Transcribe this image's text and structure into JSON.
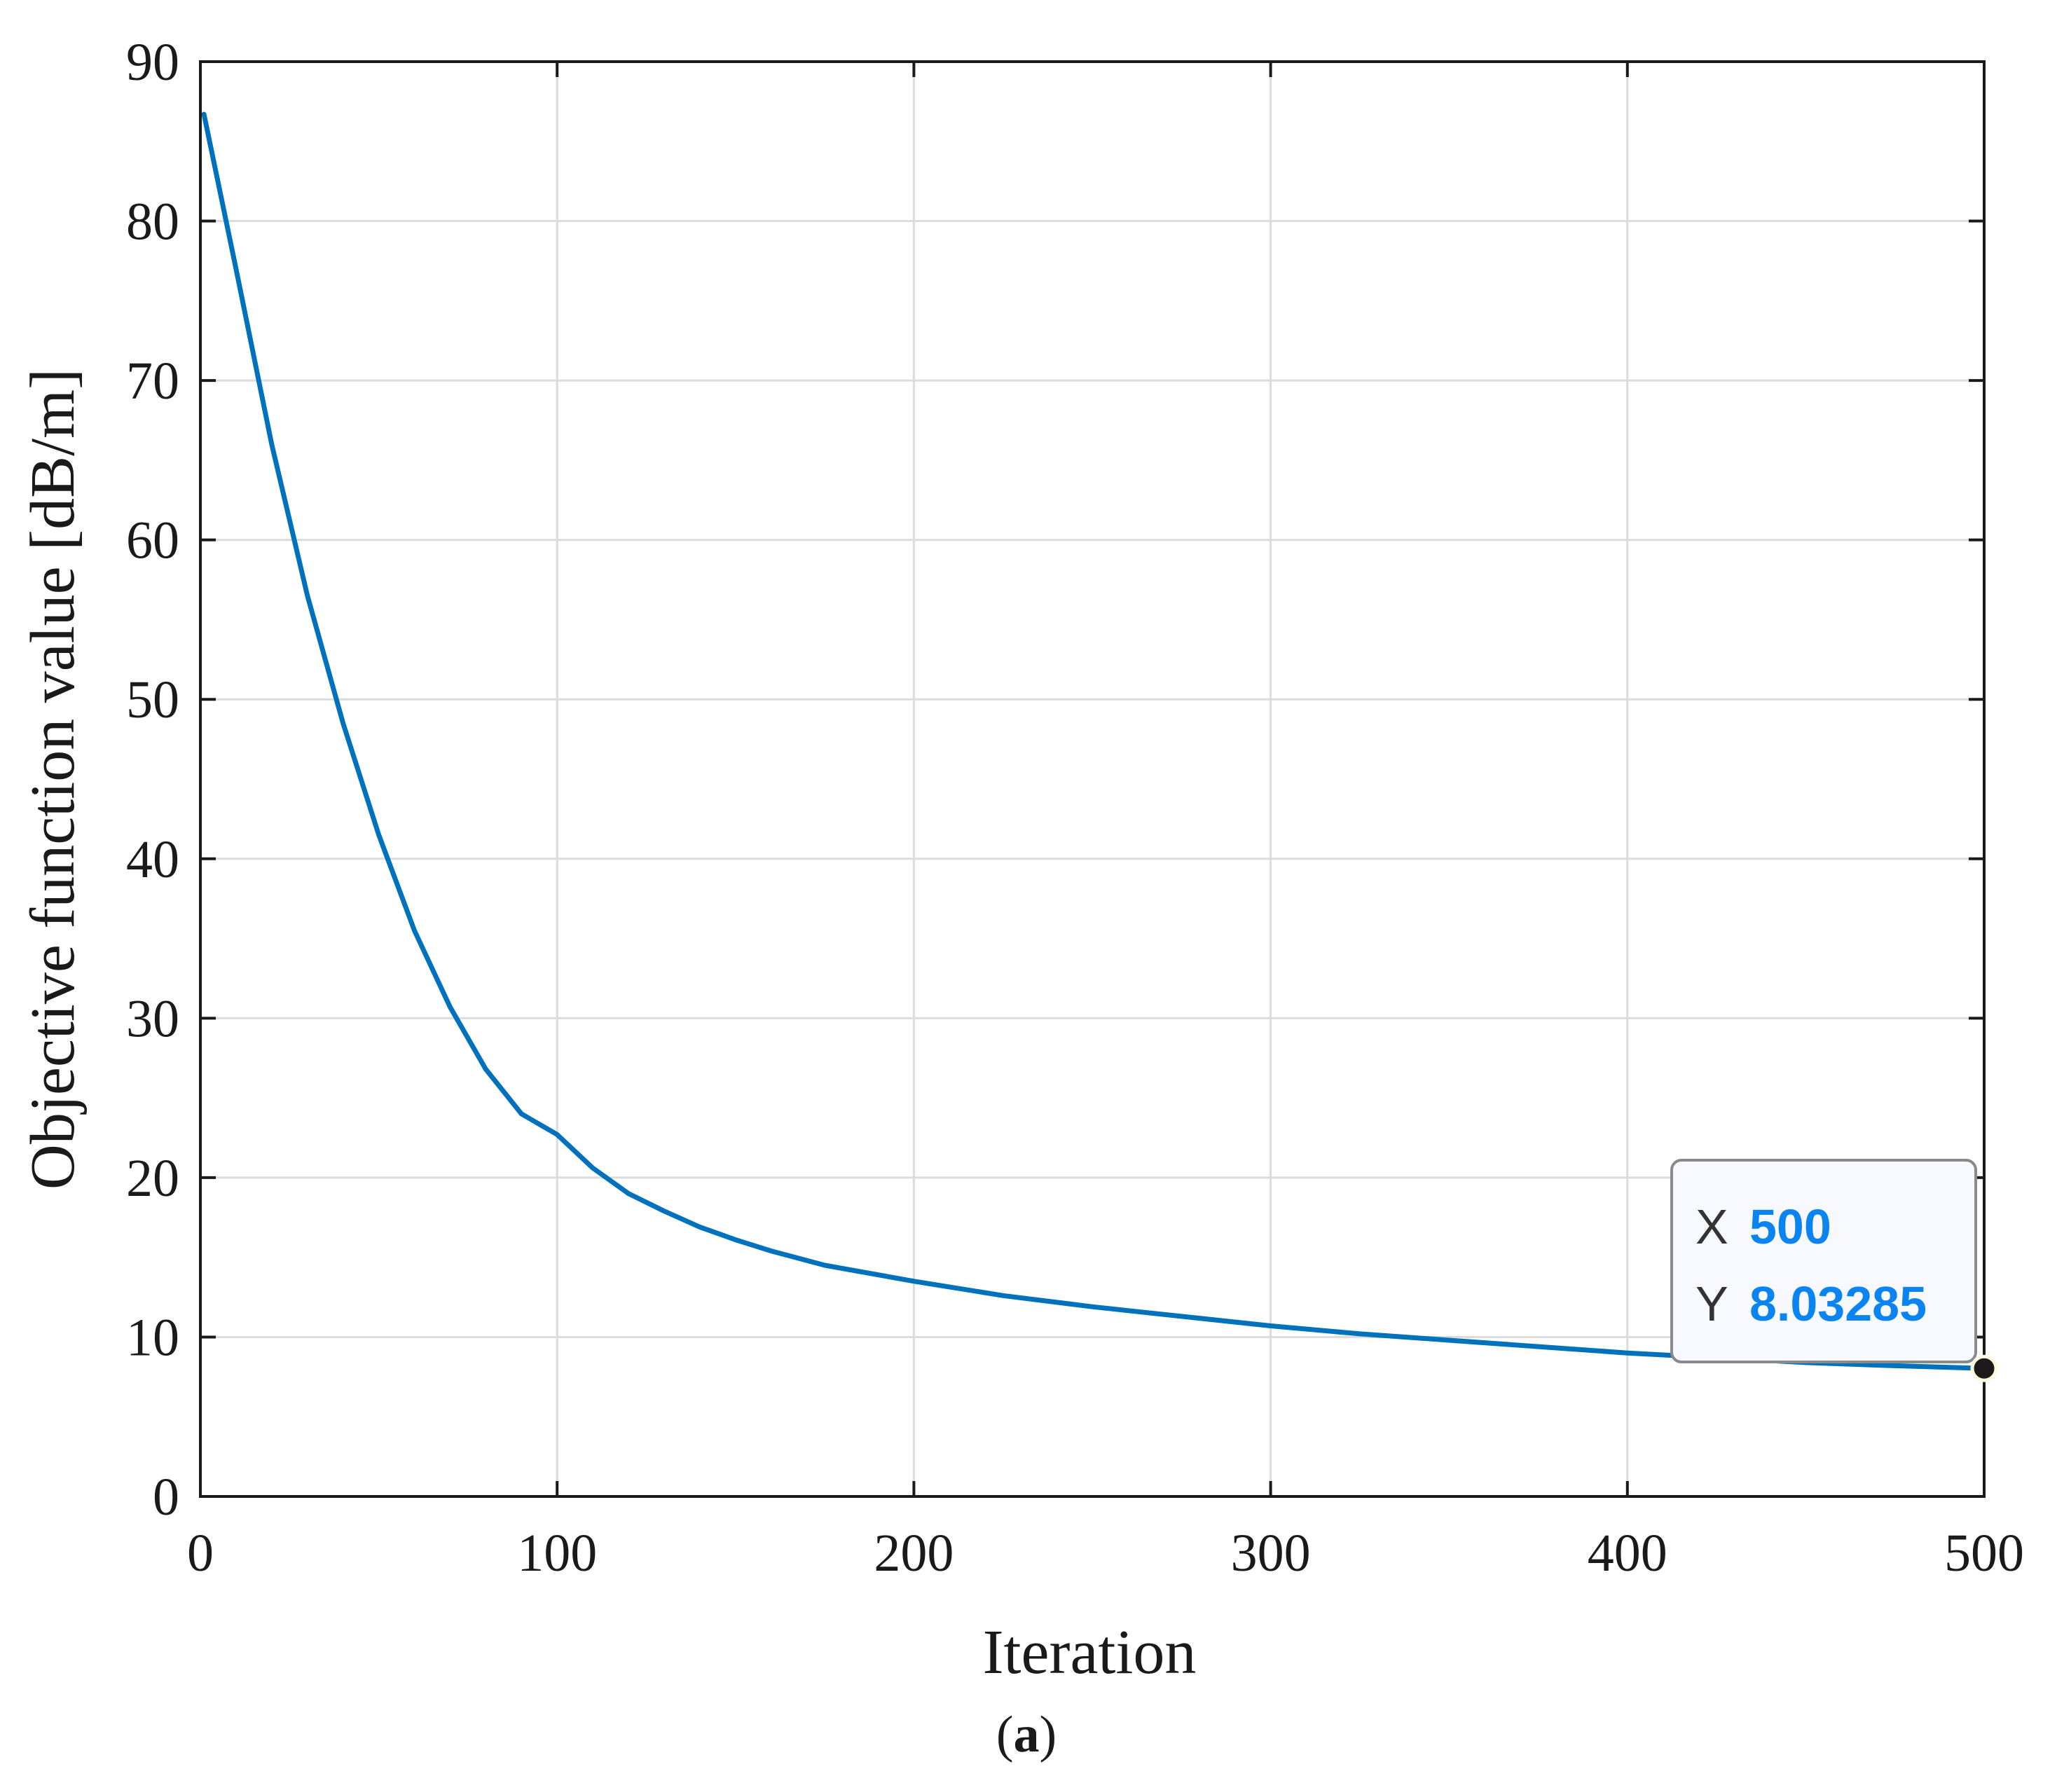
{
  "chart_data": {
    "type": "line",
    "xlabel": "Iteration",
    "ylabel": "Objective function value [dB/m]",
    "xlim": [
      0,
      500
    ],
    "ylim": [
      0,
      90
    ],
    "xticks": [
      0,
      100,
      200,
      300,
      400,
      500
    ],
    "yticks": [
      0,
      10,
      20,
      30,
      40,
      50,
      60,
      70,
      80,
      90
    ],
    "grid": true,
    "line_color": "#0072BD",
    "series": [
      {
        "x": [
          1,
          10,
          20,
          30,
          40,
          50,
          60,
          70,
          80,
          90,
          100,
          110,
          120,
          130,
          140,
          150,
          160,
          175,
          200,
          225,
          250,
          275,
          300,
          325,
          350,
          375,
          400,
          425,
          450,
          475,
          500
        ],
        "values": [
          86.7,
          77.0,
          66.0,
          56.5,
          48.5,
          41.5,
          35.5,
          30.7,
          26.8,
          24.0,
          22.7,
          20.6,
          19.0,
          17.9,
          16.9,
          16.1,
          15.4,
          14.5,
          13.5,
          12.6,
          11.9,
          11.3,
          10.7,
          10.2,
          9.8,
          9.4,
          9.0,
          8.7,
          8.4,
          8.2,
          8.03
        ]
      }
    ],
    "datatip": {
      "x_key": "X",
      "x_value": "500",
      "y_key": "Y",
      "y_value": "8.03285",
      "value_color": "#0A84F0",
      "marker_x": 500,
      "marker_y": 8.03285
    },
    "caption": {
      "open": "(",
      "letter": "a",
      "close": ")"
    }
  }
}
